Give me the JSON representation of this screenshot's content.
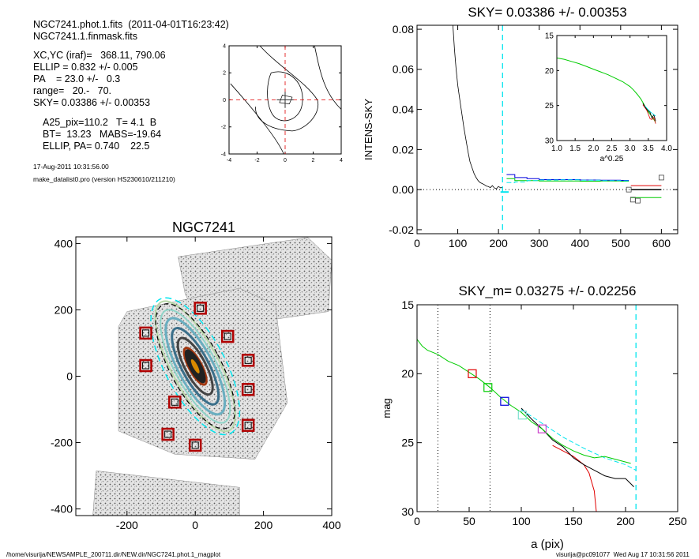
{
  "header": {
    "line1": "NGC7241.phot.1.fits  (2011-04-01T16:23:42)",
    "line2": "NGC7241.1.finmask.fits",
    "params": [
      "XC,YC (iraf)=   368.11, 790.06",
      "ELLIP = 0.832 +/- 0.005",
      "PA    = 23.0 +/-   0.3",
      "range=   20.-   70.",
      "SKY= 0.03386 +/- 0.00353"
    ],
    "summary": [
      "A25_pix=110.2   T= 4.1  B",
      "BT=  13.23   MABS=-19.64",
      "ELLIP, PA= 0.740    22.5"
    ],
    "date": "17-Aug-2011 10:31:56.00",
    "program": "make_datalist0.pro (version HS230610/211210)"
  },
  "footer": {
    "left": "/home/visurija/NEWSAMPLE_200711.dir/NEW.dir/NGC7241.phot.1_magplot",
    "right": "visurija@pc091077  Wed Aug 17 10:31:56 2011"
  },
  "colors": {
    "sky_line": "#00e5ee",
    "green": "#00cc00",
    "red": "#e00000",
    "blue": "#0000dd",
    "magenta": "#cc44cc",
    "mask": "#b00000"
  },
  "chart_data": [
    {
      "type": "line",
      "id": "center-contour",
      "x_ticks": [
        "-4",
        "-2",
        "0",
        "2",
        "4"
      ],
      "y_ticks": [
        "-4",
        "-2",
        "0",
        "2",
        "4"
      ],
      "xlim": [
        -4,
        4
      ],
      "ylim": [
        -4,
        4
      ]
    },
    {
      "type": "scatter",
      "id": "galaxy-image",
      "title": "NGC7241",
      "xlim": [
        -350,
        400
      ],
      "ylim": [
        -420,
        420
      ],
      "x_ticks": [
        "-200",
        "0",
        "200",
        "400"
      ],
      "y_ticks": [
        "-400",
        "-200",
        "0",
        "200",
        "400"
      ],
      "sky_boxes": [
        {
          "x": 15,
          "y": 205
        },
        {
          "x": -145,
          "y": 130
        },
        {
          "x": 95,
          "y": 120
        },
        {
          "x": 155,
          "y": 48
        },
        {
          "x": -145,
          "y": 32
        },
        {
          "x": 155,
          "y": -40
        },
        {
          "x": -60,
          "y": -78
        },
        {
          "x": 155,
          "y": -148
        },
        {
          "x": -80,
          "y": -175
        },
        {
          "x": 0,
          "y": -208
        }
      ]
    },
    {
      "type": "line",
      "id": "sky-profile",
      "title": "SKY= 0.03386 +/- 0.00353",
      "ylabel": "INTENS-SKY",
      "xlim": [
        0,
        640
      ],
      "ylim": [
        -0.022,
        0.082
      ],
      "x_ticks": [
        "0",
        "100",
        "200",
        "300",
        "400",
        "500",
        "600"
      ],
      "y_ticks": [
        "-0.02",
        "0.00",
        "0.02",
        "0.04",
        "0.06",
        "0.08"
      ],
      "sky_radius": 210,
      "profile_x": [
        88,
        92,
        96,
        100,
        105,
        110,
        115,
        120,
        125,
        130,
        135,
        140,
        145,
        150,
        155,
        160,
        165,
        170,
        175,
        180,
        185,
        190,
        195,
        200,
        205,
        210
      ],
      "profile_y": [
        0.082,
        0.07,
        0.06,
        0.052,
        0.045,
        0.038,
        0.031,
        0.025,
        0.019,
        0.014,
        0.011,
        0.008,
        0.006,
        0.0045,
        0.0035,
        0.003,
        0.0025,
        0.0018,
        0.0015,
        0.001,
        0.002,
        0.0008,
        0.0004,
        0.0016,
        0.0009,
        0.0011
      ],
      "steps": [
        {
          "name": "blue",
          "x": [
            220,
            240,
            270,
            300,
            350,
            400,
            450,
            500,
            520
          ],
          "y": [
            0.0075,
            0.006,
            0.0055,
            0.005,
            0.005,
            0.0048,
            0.0047,
            0.0046,
            0.0045
          ]
        },
        {
          "name": "green",
          "x": [
            220,
            240,
            270,
            300,
            350,
            400,
            450,
            500,
            520
          ],
          "y": [
            0.0055,
            0.0045,
            0.0045,
            0.0043,
            0.0043,
            0.0042,
            0.0043,
            0.0042,
            0.0042
          ]
        },
        {
          "name": "cyan",
          "x": [
            220,
            240,
            270,
            300,
            350,
            400,
            450,
            500,
            520
          ],
          "y": [
            0.0035,
            0.0038,
            0.0045,
            0.0048,
            0.0049,
            0.0047,
            0.0045,
            0.0044,
            0.0044
          ]
        }
      ],
      "tail": [
        {
          "name": "black",
          "x": [
            525,
            600
          ],
          "y": [
            0.0,
            0.0
          ]
        },
        {
          "name": "red",
          "x": [
            525,
            600
          ],
          "y": [
            0.002,
            0.002
          ]
        },
        {
          "name": "green",
          "x": [
            525,
            600
          ],
          "y": [
            -0.004,
            -0.004
          ]
        }
      ],
      "square_points": [
        {
          "x": 520,
          "y": 0.0
        },
        {
          "x": 600,
          "y": 0.006
        },
        {
          "x": 530,
          "y": -0.005
        },
        {
          "x": 542,
          "y": -0.0055
        }
      ],
      "inset": {
        "xlabel": "a^0.25",
        "xlim": [
          1.0,
          4.0
        ],
        "ylim": [
          15,
          30
        ],
        "x_ticks": [
          "1.0",
          "1.5",
          "2.0",
          "2.5",
          "3.0",
          "3.5",
          "4.0"
        ],
        "y_ticks": [
          "15",
          "20",
          "25",
          "30"
        ],
        "x": [
          1.0,
          1.2,
          1.4,
          1.6,
          1.8,
          2.0,
          2.2,
          2.4,
          2.6,
          2.8,
          3.0,
          3.1,
          3.2,
          3.3,
          3.4,
          3.5,
          3.6,
          3.7
        ],
        "y": [
          18.2,
          18.4,
          18.7,
          19.0,
          19.4,
          19.8,
          20.2,
          20.6,
          21.1,
          21.6,
          22.3,
          22.8,
          23.4,
          24.1,
          25.0,
          25.9,
          26.6,
          27.4
        ]
      }
    },
    {
      "type": "line",
      "id": "mag-profile",
      "title": "SKY_m=  0.03275 +/- 0.02256",
      "xlabel": "a (pix)",
      "ylabel": "mag",
      "xlim": [
        0,
        250
      ],
      "ylim": [
        15,
        30
      ],
      "x_ticks": [
        "0",
        "50",
        "100",
        "150",
        "200",
        "250"
      ],
      "y_ticks": [
        "15",
        "20",
        "25",
        "30"
      ],
      "range_lines": [
        20,
        70
      ],
      "sky_radius": 210,
      "green_x": [
        0,
        5,
        10,
        20,
        30,
        40,
        50,
        60,
        70,
        80,
        90,
        100,
        110,
        120,
        130,
        140,
        150,
        160,
        170,
        180,
        190,
        200,
        205
      ],
      "green_y": [
        17.5,
        18.0,
        18.3,
        18.6,
        19.1,
        19.4,
        19.9,
        20.4,
        21.0,
        21.7,
        22.3,
        22.8,
        23.5,
        24.0,
        24.7,
        25.2,
        25.6,
        25.9,
        26.1,
        26.0,
        26.2,
        26.4,
        26.5
      ],
      "black_x": [
        100,
        110,
        120,
        130,
        140,
        150,
        160,
        170,
        180,
        190,
        200,
        208
      ],
      "black_y": [
        22.5,
        23.3,
        24.0,
        24.8,
        25.3,
        26.1,
        26.6,
        27.0,
        27.4,
        27.6,
        27.6,
        28.2
      ],
      "red_x": [
        130,
        140,
        150,
        160,
        165,
        170,
        172
      ],
      "red_y": [
        25.2,
        25.6,
        26.0,
        26.6,
        27.2,
        28.5,
        30.0
      ],
      "cyan_x": [
        100,
        120,
        140,
        160,
        180,
        200,
        210
      ],
      "cyan_y": [
        22.6,
        23.6,
        24.6,
        25.4,
        26.1,
        26.6,
        27.0
      ],
      "markers": [
        {
          "x": 53,
          "y": 20.0,
          "color": "red"
        },
        {
          "x": 68,
          "y": 21.0,
          "color": "green"
        },
        {
          "x": 84,
          "y": 22.0,
          "color": "blue"
        },
        {
          "x": 101,
          "y": 23.0,
          "color": "cyan"
        },
        {
          "x": 120,
          "y": 24.0,
          "color": "magenta"
        }
      ]
    }
  ]
}
